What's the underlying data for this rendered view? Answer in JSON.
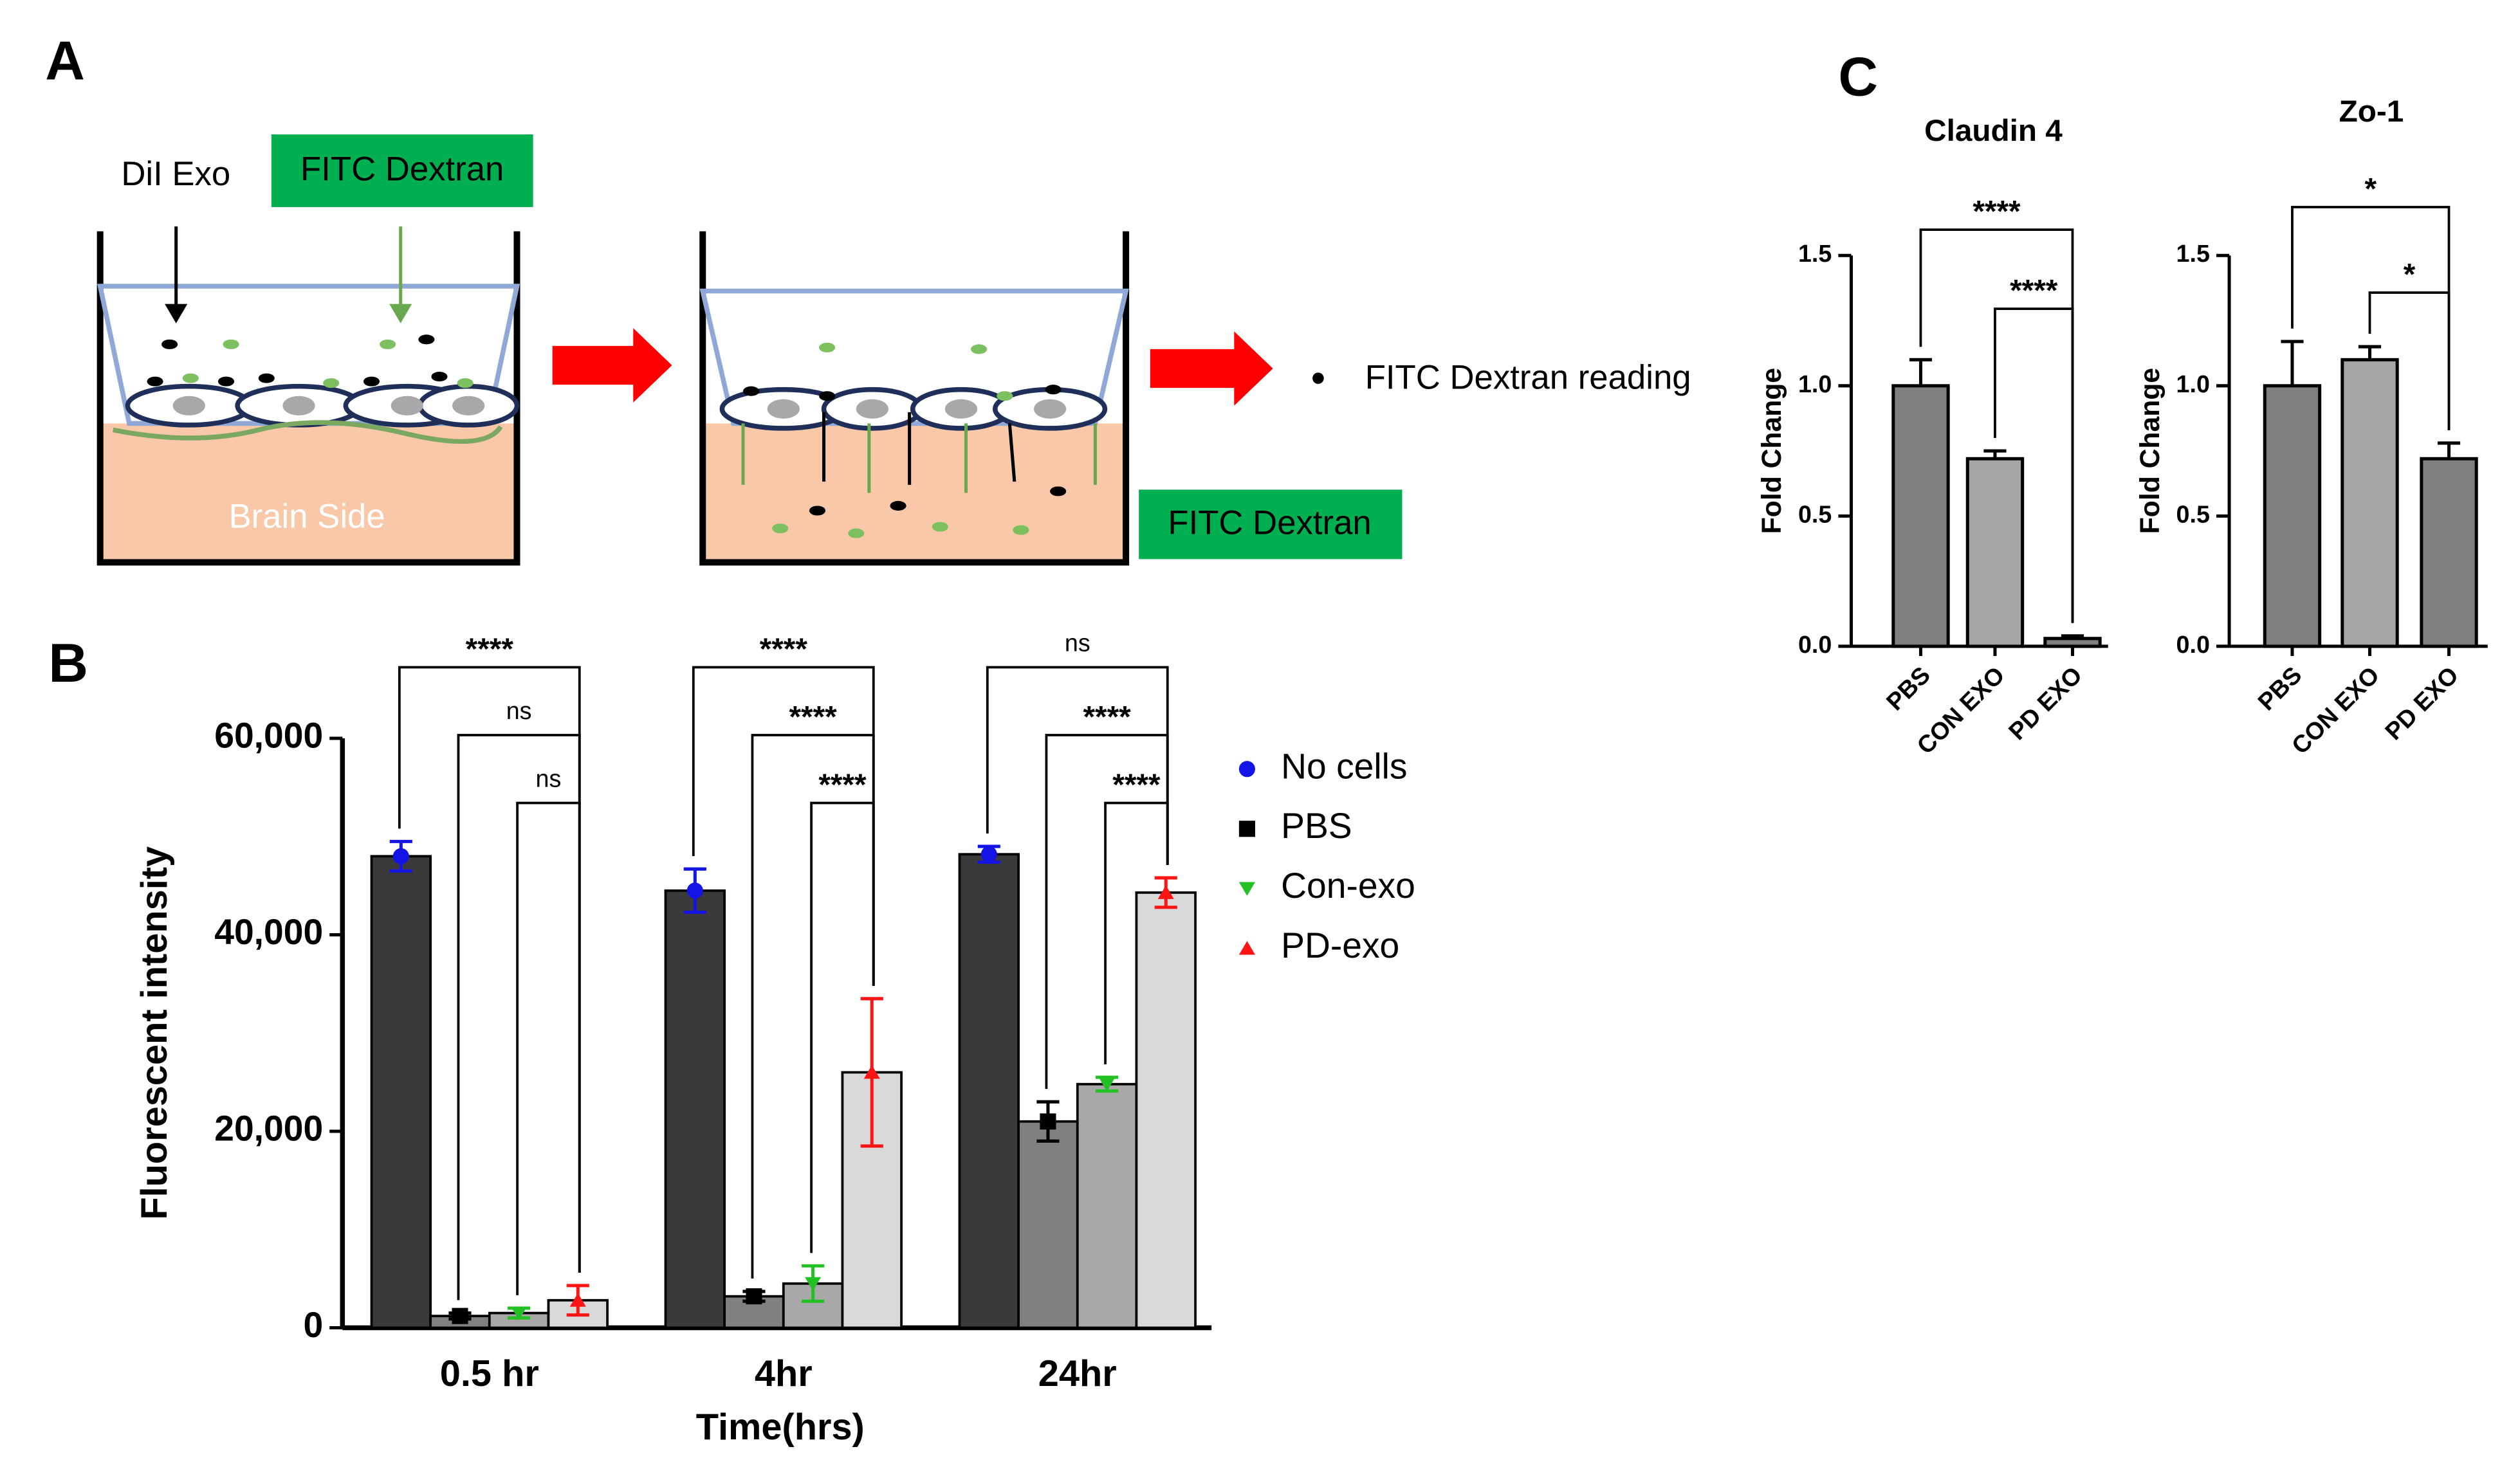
{
  "panel_labels": [
    "A",
    "B",
    "C"
  ],
  "diagram": {
    "exo_label": "DiI Exo",
    "dextran_label": "FITC Dextran",
    "brain_label": "Brain Side",
    "reading_label": "FITC Dextran reading",
    "bottom_label": "FITC Dextran"
  },
  "chart_data": [
    {
      "type": "bar",
      "categories": [
        "0.5 hr",
        "4hr",
        "24hr"
      ],
      "series": [
        {
          "name": "No cells",
          "color": "#1414e6",
          "bar_color": "#3a3a3a",
          "marker": "circle",
          "values": [
            48000,
            44500,
            48200
          ],
          "errors": [
            1500,
            2200,
            800
          ]
        },
        {
          "name": "PBS",
          "color": "#000000",
          "bar_color": "#808080",
          "marker": "square",
          "values": [
            1200,
            3200,
            21000
          ],
          "errors": [
            300,
            500,
            2000
          ]
        },
        {
          "name": "Con-exo",
          "color": "#22c022",
          "bar_color": "#a8a8a8",
          "marker": "triangle-down",
          "values": [
            1500,
            4500,
            24800
          ],
          "errors": [
            500,
            1800,
            700
          ]
        },
        {
          "name": "PD-exo",
          "color": "#ff1414",
          "bar_color": "#d9d9d9",
          "marker": "triangle-up",
          "values": [
            2800,
            26000,
            44300
          ],
          "errors": [
            1500,
            7500,
            1500
          ]
        }
      ],
      "ylim": [
        0,
        60000
      ],
      "yticks": [
        0,
        {
          "value": 20000,
          "label": "20,000"
        },
        {
          "value": 40000,
          "label": "40,000"
        },
        {
          "value": 60000,
          "label": "60,000"
        }
      ],
      "ylabel": "Fluorescent intensity",
      "xlabel": "Time(hrs)",
      "comparisons": [
        [
          {
            "label": "****",
            "pair": [
              0,
              3
            ]
          },
          {
            "label": "ns",
            "pair": [
              1,
              3
            ]
          },
          {
            "label": "ns",
            "pair": [
              2,
              3
            ]
          }
        ],
        [
          {
            "label": "****",
            "pair": [
              0,
              3
            ]
          },
          {
            "label": "****",
            "pair": [
              1,
              3
            ]
          },
          {
            "label": "****",
            "pair": [
              2,
              3
            ]
          }
        ],
        [
          {
            "label": "ns",
            "pair": [
              0,
              3
            ]
          },
          {
            "label": "****",
            "pair": [
              1,
              3
            ]
          },
          {
            "label": "****",
            "pair": [
              2,
              3
            ]
          }
        ]
      ]
    },
    {
      "type": "bar",
      "title": "Claudin 4",
      "categories": [
        "PBS",
        "CON EXO",
        "PD EXO"
      ],
      "values": [
        1.0,
        0.72,
        0.03
      ],
      "errors": [
        0.1,
        0.03,
        0.01
      ],
      "colors": [
        "#7f7f7f",
        "#a6a6a6",
        "#7f7f7f"
      ],
      "ylim": [
        0,
        1.5
      ],
      "yticks": [
        {
          "value": 0,
          "label": "0.0"
        },
        {
          "value": 0.5,
          "label": "0.5"
        },
        {
          "value": 1,
          "label": "1.0"
        },
        {
          "value": 1.5,
          "label": "1.5"
        }
      ],
      "ylabel": "Fold Change",
      "comparisons": [
        {
          "label": "****",
          "pair": [
            0,
            2
          ]
        },
        {
          "label": "****",
          "pair": [
            1,
            2
          ]
        }
      ]
    },
    {
      "type": "bar",
      "title": "Zo-1",
      "categories": [
        "PBS",
        "CON EXO",
        "PD EXO"
      ],
      "values": [
        1.0,
        1.1,
        0.72
      ],
      "errors": [
        0.17,
        0.05,
        0.06
      ],
      "colors": [
        "#7f7f7f",
        "#a6a6a6",
        "#7f7f7f"
      ],
      "ylim": [
        0,
        1.5
      ],
      "yticks": [
        {
          "value": 0,
          "label": "0.0"
        },
        {
          "value": 0.5,
          "label": "0.5"
        },
        {
          "value": 1,
          "label": "1.0"
        },
        {
          "value": 1.5,
          "label": "1.5"
        }
      ],
      "ylabel": "Fold Change",
      "comparisons": [
        {
          "label": "*",
          "pair": [
            0,
            2
          ]
        },
        {
          "label": "*",
          "pair": [
            1,
            2
          ]
        }
      ]
    }
  ]
}
